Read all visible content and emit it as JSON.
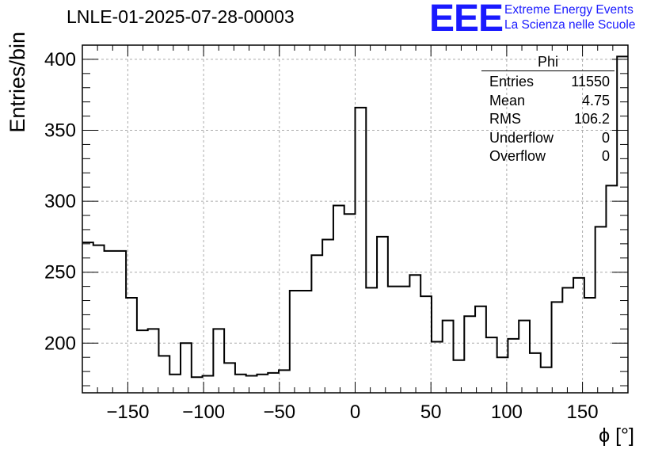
{
  "header": {
    "title": "LNLE-01-2025-07-28-00003",
    "logo": "EEE",
    "logo_line1": "Extreme Energy Events",
    "logo_line2": "La Scienza nelle Scuole"
  },
  "stats": {
    "name": "Phi",
    "rows": [
      {
        "label": "Entries",
        "value": "11550"
      },
      {
        "label": "Mean",
        "value": "4.75"
      },
      {
        "label": "RMS",
        "value": "106.2"
      },
      {
        "label": "Underflow",
        "value": "0"
      },
      {
        "label": "Overflow",
        "value": "0"
      }
    ]
  },
  "chart_data": {
    "type": "histogram",
    "title": "LNLE-01-2025-07-28-00003",
    "xlabel": "ϕ [°]",
    "ylabel": "Entries/bin",
    "xlim": [
      -180,
      180
    ],
    "ylim": [
      165,
      410
    ],
    "bin_edges_start": -180,
    "bin_width": 7.2,
    "values": [
      271,
      269,
      265,
      265,
      232,
      209,
      210,
      191,
      178,
      200,
      176,
      177,
      210,
      186,
      178,
      177,
      178,
      179,
      181,
      237,
      237,
      262,
      273,
      297,
      291,
      366,
      239,
      275,
      240,
      240,
      248,
      233,
      201,
      216,
      188,
      219,
      226,
      204,
      190,
      203,
      216,
      193,
      183,
      229,
      239,
      246,
      232,
      282,
      311,
      402
    ],
    "x_ticks": [
      -150,
      -100,
      -50,
      0,
      50,
      100,
      150
    ],
    "x_tick_labels": [
      "−150",
      "−100",
      "−50",
      "0",
      "50",
      "100",
      "150"
    ],
    "y_ticks": [
      200,
      250,
      300,
      350,
      400
    ],
    "y_tick_labels": [
      "200",
      "250",
      "300",
      "350",
      "400"
    ],
    "grid": true
  }
}
